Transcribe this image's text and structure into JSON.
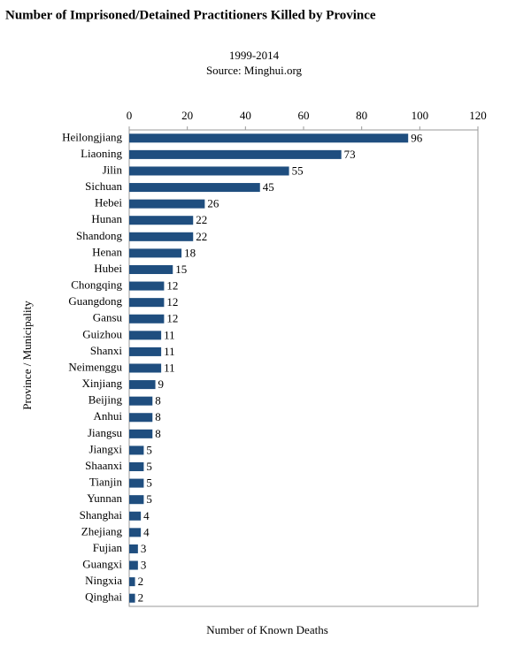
{
  "chart_data": {
    "type": "bar",
    "orientation": "horizontal",
    "title": "Number of Imprisoned/Detained Practitioners Killed by Province",
    "subtitle": "1999-2014",
    "source": "Source: Minghui.org",
    "x_label": "Number of Known Deaths",
    "y_label": "Province / Municipality",
    "categories": [
      "Heilongjiang",
      "Liaoning",
      "Jilin",
      "Sichuan",
      "Hebei",
      "Hunan",
      "Shandong",
      "Henan",
      "Hubei",
      "Chongqing",
      "Guangdong",
      "Gansu",
      "Guizhou",
      "Shanxi",
      "Neimenggu",
      "Xinjiang",
      "Beijing",
      "Anhui",
      "Jiangsu",
      "Jiangxi",
      "Shaanxi",
      "Tianjin",
      "Yunnan",
      "Shanghai",
      "Zhejiang",
      "Fujian",
      "Guangxi",
      "Ningxia",
      "Qinghai"
    ],
    "values": [
      96,
      73,
      55,
      45,
      26,
      22,
      22,
      18,
      15,
      12,
      12,
      12,
      11,
      11,
      11,
      9,
      8,
      8,
      8,
      5,
      5,
      5,
      5,
      4,
      4,
      3,
      3,
      2,
      2
    ],
    "color": "#1f4e7f",
    "xlim": [
      0,
      120
    ],
    "xticks": [
      0,
      20,
      40,
      60,
      80,
      100,
      120
    ],
    "grid": false
  }
}
